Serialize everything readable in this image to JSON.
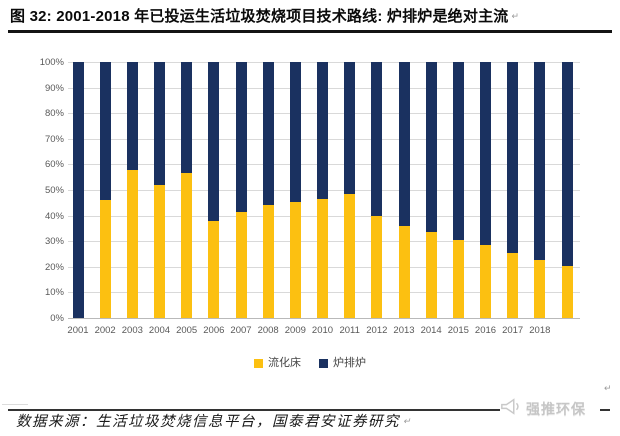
{
  "figure": {
    "title": "图 32: 2001-2018 年已投运生活垃圾焚烧项目技术路线: 炉排炉是绝对主流",
    "return_mark": "↵",
    "source_note": "数据来源：生活垃圾焚烧信息平台，国泰君安证券研究",
    "watermark": {
      "text": "强推环保",
      "icon": "megaphone-icon"
    }
  },
  "chart_data": {
    "type": "bar",
    "subtype": "stacked-100-percent",
    "title": "",
    "xlabel": "",
    "ylabel": "",
    "ylim": [
      0,
      100
    ],
    "grid": true,
    "legend_position": "bottom",
    "yticks": [
      "100%",
      "90%",
      "80%",
      "70%",
      "60%",
      "50%",
      "40%",
      "30%",
      "20%",
      "10%",
      "0%"
    ],
    "categories": [
      "2001",
      "2002",
      "2003",
      "2004",
      "2005",
      "2006",
      "2007",
      "2008",
      "2009",
      "2010",
      "2011",
      "2012",
      "2013",
      "2014",
      "2015",
      "2016",
      "2017",
      "2018",
      ""
    ],
    "series": [
      {
        "name": "流化床",
        "color": "#FCC011",
        "values": [
          0,
          46,
          58,
          52,
          56.5,
          38,
          41.5,
          44,
          45.5,
          46.5,
          48.5,
          40,
          36,
          33.5,
          30.5,
          28.5,
          25.5,
          22.5,
          20.5
        ]
      },
      {
        "name": "炉排炉",
        "color": "#1A3160",
        "values": [
          100,
          54,
          42,
          48,
          43.5,
          62,
          58.5,
          56,
          54.5,
          53.5,
          51.5,
          60,
          64,
          66.5,
          69.5,
          71.5,
          74.5,
          77.5,
          79.5
        ]
      }
    ]
  },
  "colors": {
    "gridline": "#d9d9d9",
    "axis_line": "#b9b9b9",
    "tick_text": "#595959",
    "title_text": "#0a0a0a",
    "rule": "#333333",
    "watermark": "#c6c6c6"
  }
}
